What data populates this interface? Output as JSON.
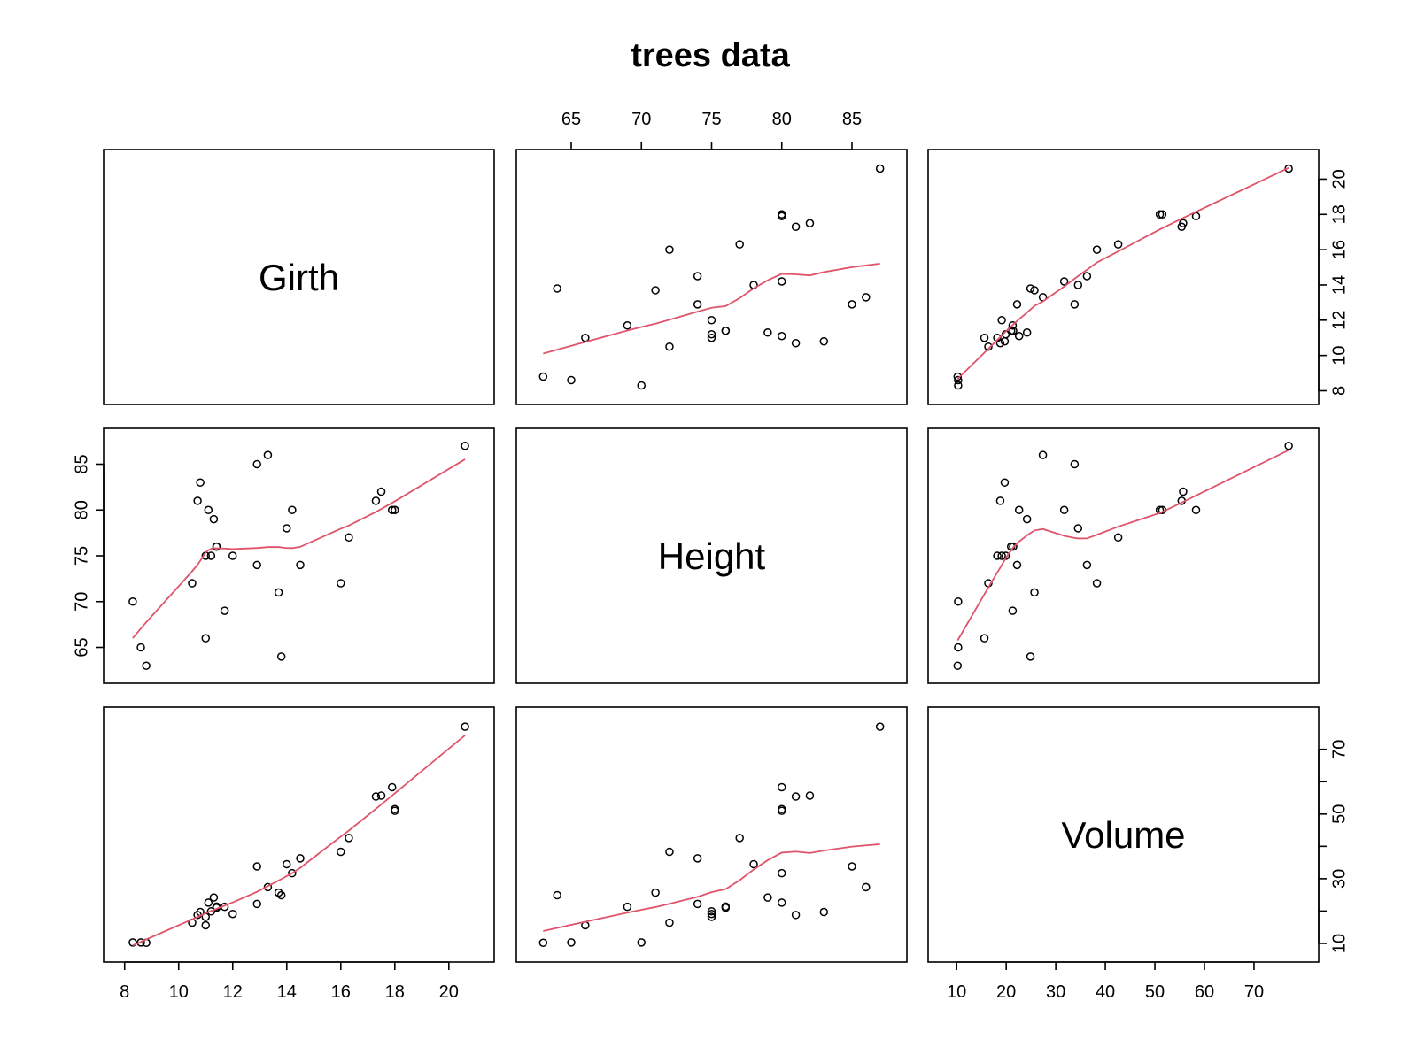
{
  "chart_data": {
    "type": "scatter",
    "subtype": "scatterplot-matrix",
    "title": "trees data",
    "variables": [
      "Girth",
      "Height",
      "Volume"
    ],
    "axis_ranges": {
      "Girth": [
        7.8,
        21.1
      ],
      "Height": [
        62.2,
        87.8
      ],
      "Volume": [
        7.4,
        79.9
      ]
    },
    "ticks": {
      "Girth": [
        8,
        10,
        12,
        14,
        16,
        18,
        20
      ],
      "Height": [
        65,
        70,
        75,
        80,
        85
      ],
      "Volume": [
        10,
        20,
        30,
        40,
        50,
        60,
        70
      ]
    },
    "tick_labels_vertical": {
      "Girth": [
        "8",
        "10",
        "12",
        "14",
        "16",
        "18",
        "20"
      ],
      "Height": [
        "65",
        "70",
        "75",
        "80",
        "85"
      ],
      "Volume": [
        "10",
        "30",
        "50",
        "70"
      ]
    },
    "smoother": {
      "type": "lowess",
      "color": "#df536b"
    },
    "point_color": "#000000",
    "grid": false,
    "legend": "none",
    "series": [
      {
        "Girth": [
          8.3,
          8.6,
          8.8,
          10.5,
          10.7,
          10.8,
          11.0,
          11.0,
          11.1,
          11.2,
          11.3,
          11.4,
          11.4,
          11.7,
          12.0,
          12.9,
          12.9,
          13.3,
          13.7,
          13.8,
          14.0,
          14.2,
          14.5,
          16.0,
          16.3,
          17.3,
          17.5,
          17.9,
          18.0,
          18.0,
          20.6
        ],
        "Height": [
          70,
          65,
          63,
          72,
          81,
          83,
          66,
          75,
          80,
          75,
          79,
          76,
          76,
          69,
          75,
          74,
          85,
          86,
          71,
          64,
          78,
          80,
          74,
          72,
          77,
          81,
          82,
          80,
          80,
          80,
          87
        ],
        "Volume": [
          10.3,
          10.3,
          10.2,
          16.4,
          18.8,
          19.7,
          15.6,
          18.2,
          22.6,
          19.9,
          24.2,
          21.0,
          21.4,
          21.3,
          19.1,
          22.2,
          33.8,
          27.4,
          25.7,
          24.9,
          34.5,
          31.7,
          36.3,
          38.3,
          42.6,
          55.4,
          55.7,
          58.3,
          51.5,
          51.0,
          77.0
        ]
      }
    ]
  }
}
